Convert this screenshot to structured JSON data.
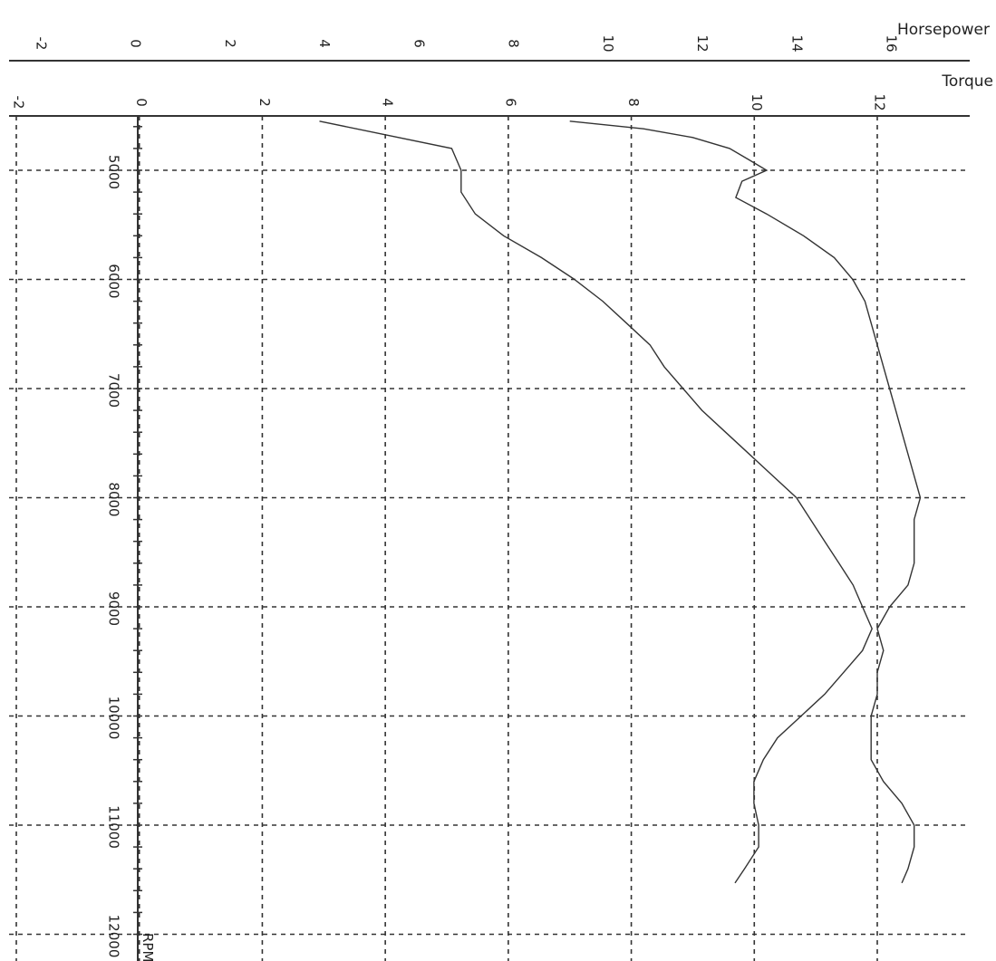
{
  "chart_data": {
    "type": "line",
    "orientation": "rotated-90-clockwise",
    "grid": true,
    "axes": {
      "horsepower": {
        "label": "Horsepower",
        "range": [
          -2,
          16
        ],
        "ticks": [
          "-2",
          "0",
          "2",
          "4",
          "6",
          "8",
          "10",
          "12",
          "14",
          "16"
        ]
      },
      "torque": {
        "label": "Torque",
        "range": [
          -2,
          12
        ],
        "ticks": [
          "-2",
          "0",
          "2",
          "4",
          "6",
          "8",
          "10",
          "12"
        ]
      },
      "rpm": {
        "label": "RPM",
        "range": [
          4550,
          12050
        ],
        "ticks": [
          "5000",
          "6000",
          "7000",
          "8000",
          "9000",
          "10000",
          "11000",
          "12000"
        ]
      }
    },
    "series": [
      {
        "axis": "horsepower",
        "x_rpm": [
          4550,
          4800,
          5000,
          5200,
          5400,
          5600,
          5800,
          6000,
          6200,
          6400,
          6600,
          6800,
          7000,
          7200,
          7400,
          7600,
          7800,
          8000,
          8200,
          8400,
          8600,
          8800,
          9000,
          9200,
          9400,
          9600,
          9800,
          10000,
          10200,
          10400,
          10600,
          10800,
          11000,
          11200,
          11400,
          11530
        ],
        "values": [
          3.9,
          6.7,
          6.9,
          6.9,
          7.2,
          7.8,
          8.6,
          9.3,
          9.9,
          10.4,
          10.9,
          11.2,
          11.6,
          12.0,
          12.5,
          13.0,
          13.5,
          14.0,
          14.3,
          14.6,
          14.9,
          15.2,
          15.4,
          15.6,
          15.4,
          15.0,
          14.6,
          14.1,
          13.6,
          13.3,
          13.1,
          13.1,
          13.2,
          13.2,
          12.9,
          12.7
        ]
      },
      {
        "axis": "torque",
        "x_rpm": [
          4550,
          4620,
          4700,
          4800,
          4900,
          5000,
          5100,
          5250,
          5400,
          5600,
          5800,
          6000,
          6200,
          6400,
          6600,
          6800,
          7000,
          7200,
          7400,
          7600,
          7800,
          8000,
          8200,
          8400,
          8600,
          8800,
          9000,
          9200,
          9400,
          9600,
          9800,
          10000,
          10200,
          10400,
          10600,
          10800,
          11000,
          11200,
          11400,
          11530
        ],
        "values": [
          7.0,
          8.2,
          9.0,
          9.6,
          9.9,
          10.2,
          9.8,
          9.7,
          10.2,
          10.8,
          11.3,
          11.6,
          11.8,
          11.9,
          12.0,
          12.1,
          12.2,
          12.3,
          12.4,
          12.5,
          12.6,
          12.7,
          12.6,
          12.6,
          12.6,
          12.5,
          12.2,
          12.0,
          12.1,
          12.0,
          12.0,
          11.9,
          11.9,
          11.9,
          12.1,
          12.4,
          12.6,
          12.6,
          12.5,
          12.4
        ]
      }
    ]
  }
}
